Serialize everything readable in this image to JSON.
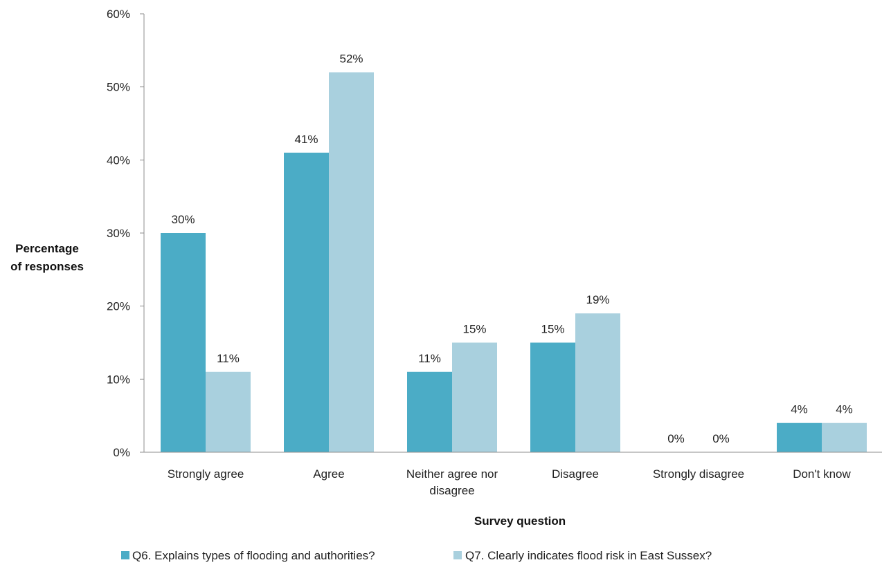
{
  "chart_data": {
    "type": "bar",
    "categories": [
      [
        "Strongly agree"
      ],
      [
        "Agree"
      ],
      [
        "Neither agree nor",
        "disagree"
      ],
      [
        "Disagree"
      ],
      [
        "Strongly disagree"
      ],
      [
        "Don't know"
      ]
    ],
    "series": [
      {
        "name": "Q6. Explains types of flooding and authorities?",
        "color": "#4bacc6",
        "values": [
          30,
          41,
          11,
          15,
          0,
          4
        ],
        "labels": [
          "30%",
          "41%",
          "11%",
          "15%",
          "0%",
          "4%"
        ]
      },
      {
        "name": "Q7. Clearly indicates flood risk in East Sussex?",
        "color": "#a9d0de",
        "values": [
          11,
          52,
          15,
          19,
          0,
          4
        ],
        "labels": [
          "11%",
          "52%",
          "15%",
          "19%",
          "0%",
          "4%"
        ]
      }
    ],
    "ylim": [
      0,
      60
    ],
    "yticks": [
      0,
      10,
      20,
      30,
      40,
      50,
      60
    ],
    "ytick_labels": [
      "0%",
      "10%",
      "20%",
      "30%",
      "40%",
      "50%",
      "60%"
    ],
    "ylabel": [
      "Percentage",
      "of responses"
    ],
    "xlabel": "Survey question",
    "grid": false,
    "legend_position": "bottom"
  }
}
